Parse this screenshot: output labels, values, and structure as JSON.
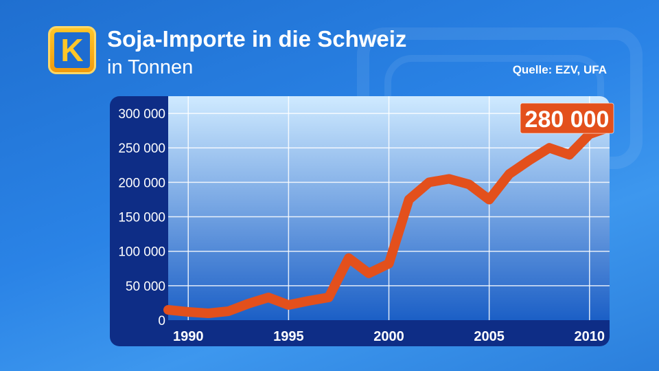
{
  "header": {
    "logo_letter": "K",
    "title": "Soja-Importe in die Schweiz",
    "subtitle": "in Tonnen",
    "source": "Quelle: EZV, UFA"
  },
  "colors": {
    "line": "#e3501c",
    "plot_top": "#cfeaff",
    "plot_bottom": "#1b5fc6",
    "axis_panel": "#0e2d86"
  },
  "chart_data": {
    "type": "line",
    "title": "Soja-Importe in die Schweiz",
    "subtitle": "in Tonnen",
    "xlabel": "",
    "ylabel": "",
    "xlim": [
      1989,
      2011
    ],
    "ylim": [
      0,
      325000
    ],
    "yticks": [
      0,
      50000,
      100000,
      150000,
      200000,
      250000,
      300000
    ],
    "ytick_labels": [
      "0",
      "50 000",
      "100 000",
      "150 000",
      "200 000",
      "250 000",
      "300 000"
    ],
    "xticks": [
      1990,
      1995,
      2000,
      2005,
      2010
    ],
    "xtick_labels": [
      "1990",
      "1995",
      "2000",
      "2005",
      "2010"
    ],
    "grid": true,
    "series": [
      {
        "x": [
          1989,
          1990,
          1991,
          1992,
          1993,
          1994,
          1995,
          1996,
          1997,
          1998,
          1999,
          2000,
          2001,
          2002,
          2003,
          2004,
          2005,
          2006,
          2007,
          2008,
          2009,
          2010,
          2011
        ],
        "y": [
          15000,
          12000,
          10000,
          13000,
          24000,
          33000,
          22000,
          28000,
          33000,
          90000,
          68000,
          82000,
          175000,
          200000,
          205000,
          197000,
          175000,
          212000,
          232000,
          250000,
          240000,
          270000,
          280000
        ]
      }
    ],
    "annotations": [
      {
        "text": "280 000",
        "x": 2011,
        "y": 280000
      }
    ]
  }
}
